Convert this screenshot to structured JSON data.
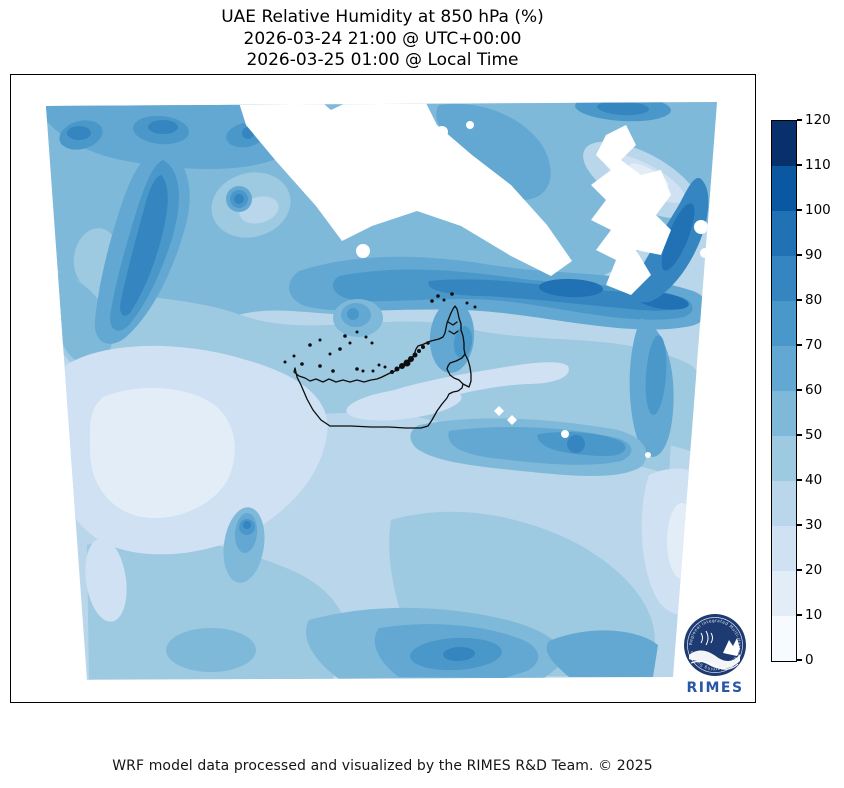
{
  "title": {
    "line1": "UAE Relative Humidity at 850 hPa (%)",
    "line2": "2026-03-24 21:00 @ UTC+00:00",
    "line3": "2026-03-25 01:00 @ Local Time"
  },
  "map": {
    "variable": "Relative Humidity",
    "pressure_level": "850 hPa",
    "units": "%",
    "region": "UAE"
  },
  "colorbar": {
    "min": 0,
    "max": 120,
    "interval": 10,
    "tick_labels_bottom_to_top": [
      "0",
      "10",
      "20",
      "30",
      "40",
      "50",
      "60",
      "70",
      "80",
      "90",
      "100",
      "110",
      "120"
    ]
  },
  "palette": {
    "colormap": "Blues",
    "level_colors_low_to_high": [
      "#f7fbff",
      "#e2edf8",
      "#cfe1f2",
      "#b9d6ea",
      "#9dc9e1",
      "#7fb9da",
      "#62a8d2",
      "#4a98c9",
      "#3585c0",
      "#2171b5",
      "#0b58a2",
      "#08306b"
    ],
    "masked_color": "#ffffff",
    "coastline_color": "#0d0d0d"
  },
  "logo": {
    "wordmark": "RIMES",
    "ring_text": "Regional Integrated Multi-Hazard Early Warning System",
    "circle_color": "#1d3b72",
    "wordmark_color": "#2a57a5"
  },
  "footer": {
    "credit": "WRF model data processed and visualized by the RIMES R&D Team. © 2025"
  }
}
